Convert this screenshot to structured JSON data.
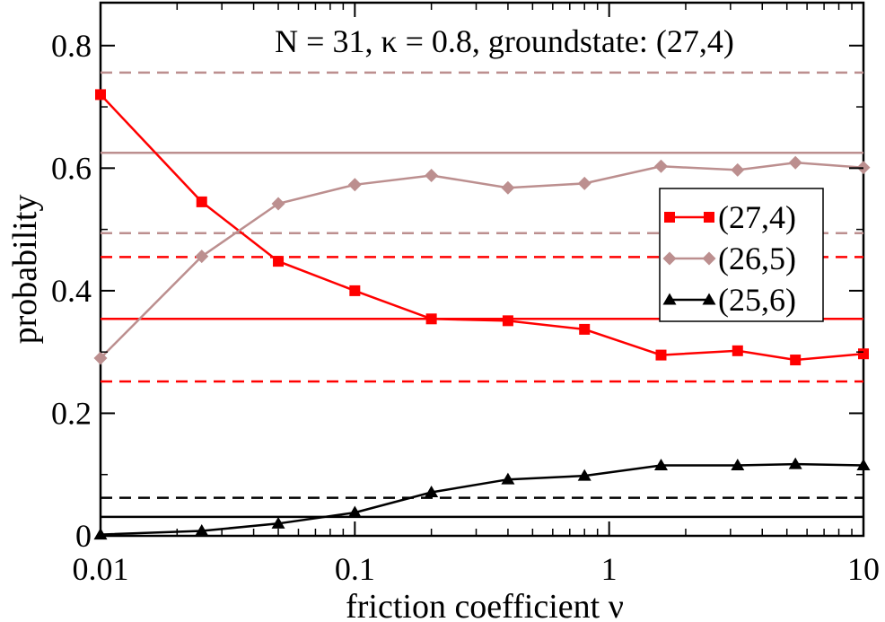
{
  "chart_data": {
    "type": "line",
    "title": "N = 31,  κ = 0.8,  groundstate: (27,4)",
    "xlabel": "friction coefficient  ν",
    "ylabel": "probability",
    "xscale": "log",
    "xlim": [
      0.01,
      10
    ],
    "ylim": [
      0,
      0.87
    ],
    "x_ticks": [
      0.01,
      0.1,
      1,
      10
    ],
    "x_tick_labels": [
      "0.01",
      "0.1",
      "1",
      "10"
    ],
    "y_ticks": [
      0,
      0.2,
      0.4,
      0.6,
      0.8
    ],
    "y_tick_labels": [
      "0",
      "0.2",
      "0.4",
      "0.6",
      "0.8"
    ],
    "grid": false,
    "legend_position": "right",
    "series": [
      {
        "name": "(27,4)",
        "color": "#ff0000",
        "marker": "square",
        "x": [
          0.01,
          0.025,
          0.05,
          0.1,
          0.2,
          0.4,
          0.8,
          1.6,
          3.2,
          5.4,
          10
        ],
        "y": [
          0.72,
          0.545,
          0.448,
          0.4,
          0.354,
          0.351,
          0.337,
          0.295,
          0.302,
          0.287,
          0.297
        ]
      },
      {
        "name": "(26,5)",
        "color": "#bc8f8f",
        "marker": "diamond",
        "x": [
          0.01,
          0.025,
          0.05,
          0.1,
          0.2,
          0.4,
          0.8,
          1.6,
          3.2,
          5.4,
          10
        ],
        "y": [
          0.29,
          0.456,
          0.542,
          0.573,
          0.588,
          0.568,
          0.575,
          0.603,
          0.597,
          0.609,
          0.601
        ]
      },
      {
        "name": "(25,6)",
        "color": "#000000",
        "marker": "triangle",
        "x": [
          0.01,
          0.025,
          0.05,
          0.1,
          0.2,
          0.4,
          0.8,
          1.6,
          3.2,
          5.4,
          10
        ],
        "y": [
          0.002,
          0.008,
          0.02,
          0.038,
          0.071,
          0.092,
          0.098,
          0.115,
          0.115,
          0.117,
          0.115
        ]
      }
    ],
    "reference_lines": [
      {
        "y": 0.756,
        "color": "#bc8f8f",
        "style": "dashed"
      },
      {
        "y": 0.625,
        "color": "#bc8f8f",
        "style": "solid"
      },
      {
        "y": 0.494,
        "color": "#bc8f8f",
        "style": "dashed"
      },
      {
        "y": 0.455,
        "color": "#ff0000",
        "style": "dashed"
      },
      {
        "y": 0.354,
        "color": "#ff0000",
        "style": "solid"
      },
      {
        "y": 0.252,
        "color": "#ff0000",
        "style": "dashed"
      },
      {
        "y": 0.062,
        "color": "#000000",
        "style": "dashed"
      },
      {
        "y": 0.031,
        "color": "#000000",
        "style": "solid"
      }
    ]
  }
}
